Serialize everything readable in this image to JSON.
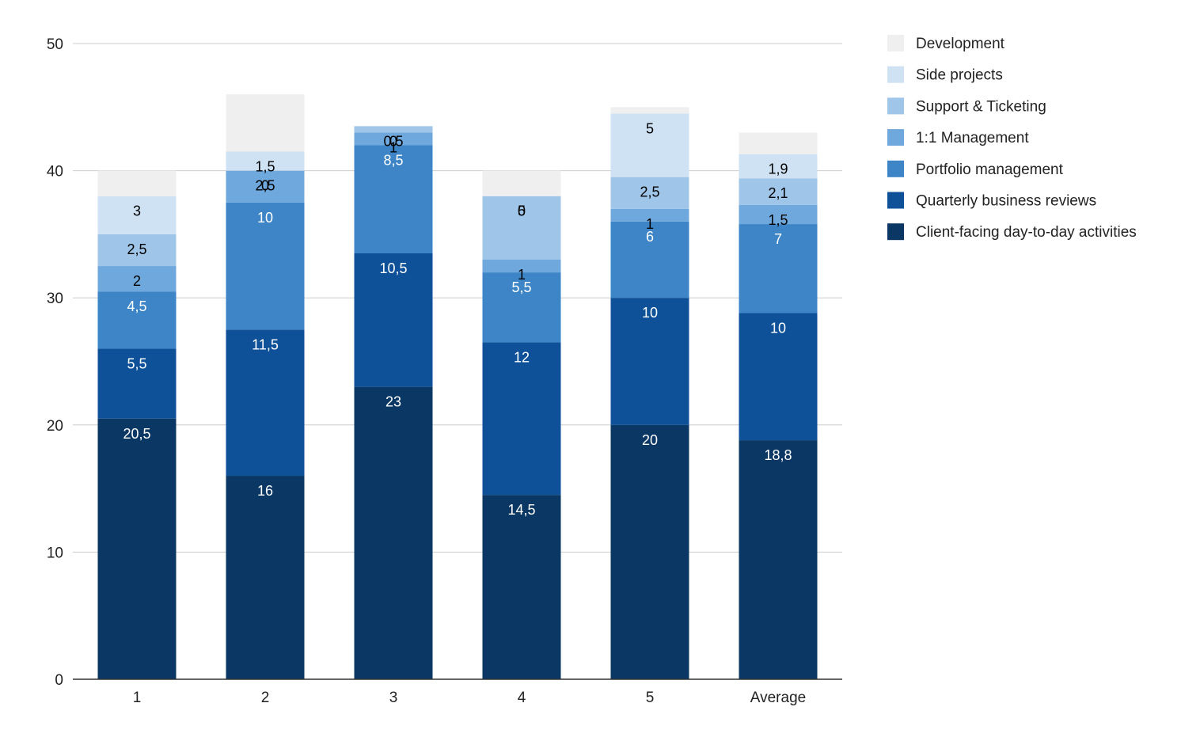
{
  "chart_data": {
    "type": "bar",
    "stacked": true,
    "categories": [
      "1",
      "2",
      "3",
      "4",
      "5",
      "Average"
    ],
    "ylim": [
      0,
      50
    ],
    "yticks": [
      0,
      10,
      20,
      30,
      40,
      50
    ],
    "grid": true,
    "legend_position": "right",
    "series": [
      {
        "name": "Client-facing day-to-day activities",
        "color": "#0b3764",
        "label_color": "#ffffff",
        "values": [
          20.5,
          16,
          23,
          14.5,
          20,
          18.8
        ],
        "labels": [
          "20,5",
          "16",
          "23",
          "14,5",
          "20",
          "18,8"
        ]
      },
      {
        "name": "Quarterly business reviews",
        "color": "#0e5198",
        "label_color": "#ffffff",
        "values": [
          5.5,
          11.5,
          10.5,
          12,
          10,
          10
        ],
        "labels": [
          "5,5",
          "11,5",
          "10,5",
          "12",
          "10",
          "10"
        ]
      },
      {
        "name": "Portfolio management",
        "color": "#3d85c6",
        "label_color": "#ffffff",
        "values": [
          4.5,
          10,
          8.5,
          5.5,
          6,
          7
        ],
        "labels": [
          "4,5",
          "10",
          "8,5",
          "5,5",
          "6",
          "7"
        ]
      },
      {
        "name": "1:1 Management",
        "color": "#6fa8dc",
        "label_color": "#000000",
        "values": [
          2,
          2.5,
          1,
          1,
          1,
          1.5
        ],
        "labels": [
          "2",
          "2,5",
          "1",
          "1",
          "1",
          "1,5"
        ]
      },
      {
        "name": "Support & Ticketing",
        "color": "#9fc5e8",
        "label_color": "#000000",
        "values": [
          2.5,
          0,
          0.5,
          5,
          2.5,
          2.1
        ],
        "labels": [
          "2,5",
          "0",
          "0,5",
          "5",
          "2,5",
          "2,1"
        ]
      },
      {
        "name": "Side projects",
        "color": "#cfe2f3",
        "label_color": "#000000",
        "values": [
          3,
          1.5,
          0,
          0,
          5,
          1.9
        ],
        "labels": [
          "3",
          "1,5",
          "0",
          "0",
          "5",
          "1,9"
        ]
      },
      {
        "name": "Development",
        "color": "#efefef",
        "label_color": "#000000",
        "values": [
          2,
          4.5,
          0,
          2,
          0.5,
          1.7
        ],
        "labels": [
          null,
          null,
          null,
          null,
          null,
          null
        ]
      }
    ]
  }
}
